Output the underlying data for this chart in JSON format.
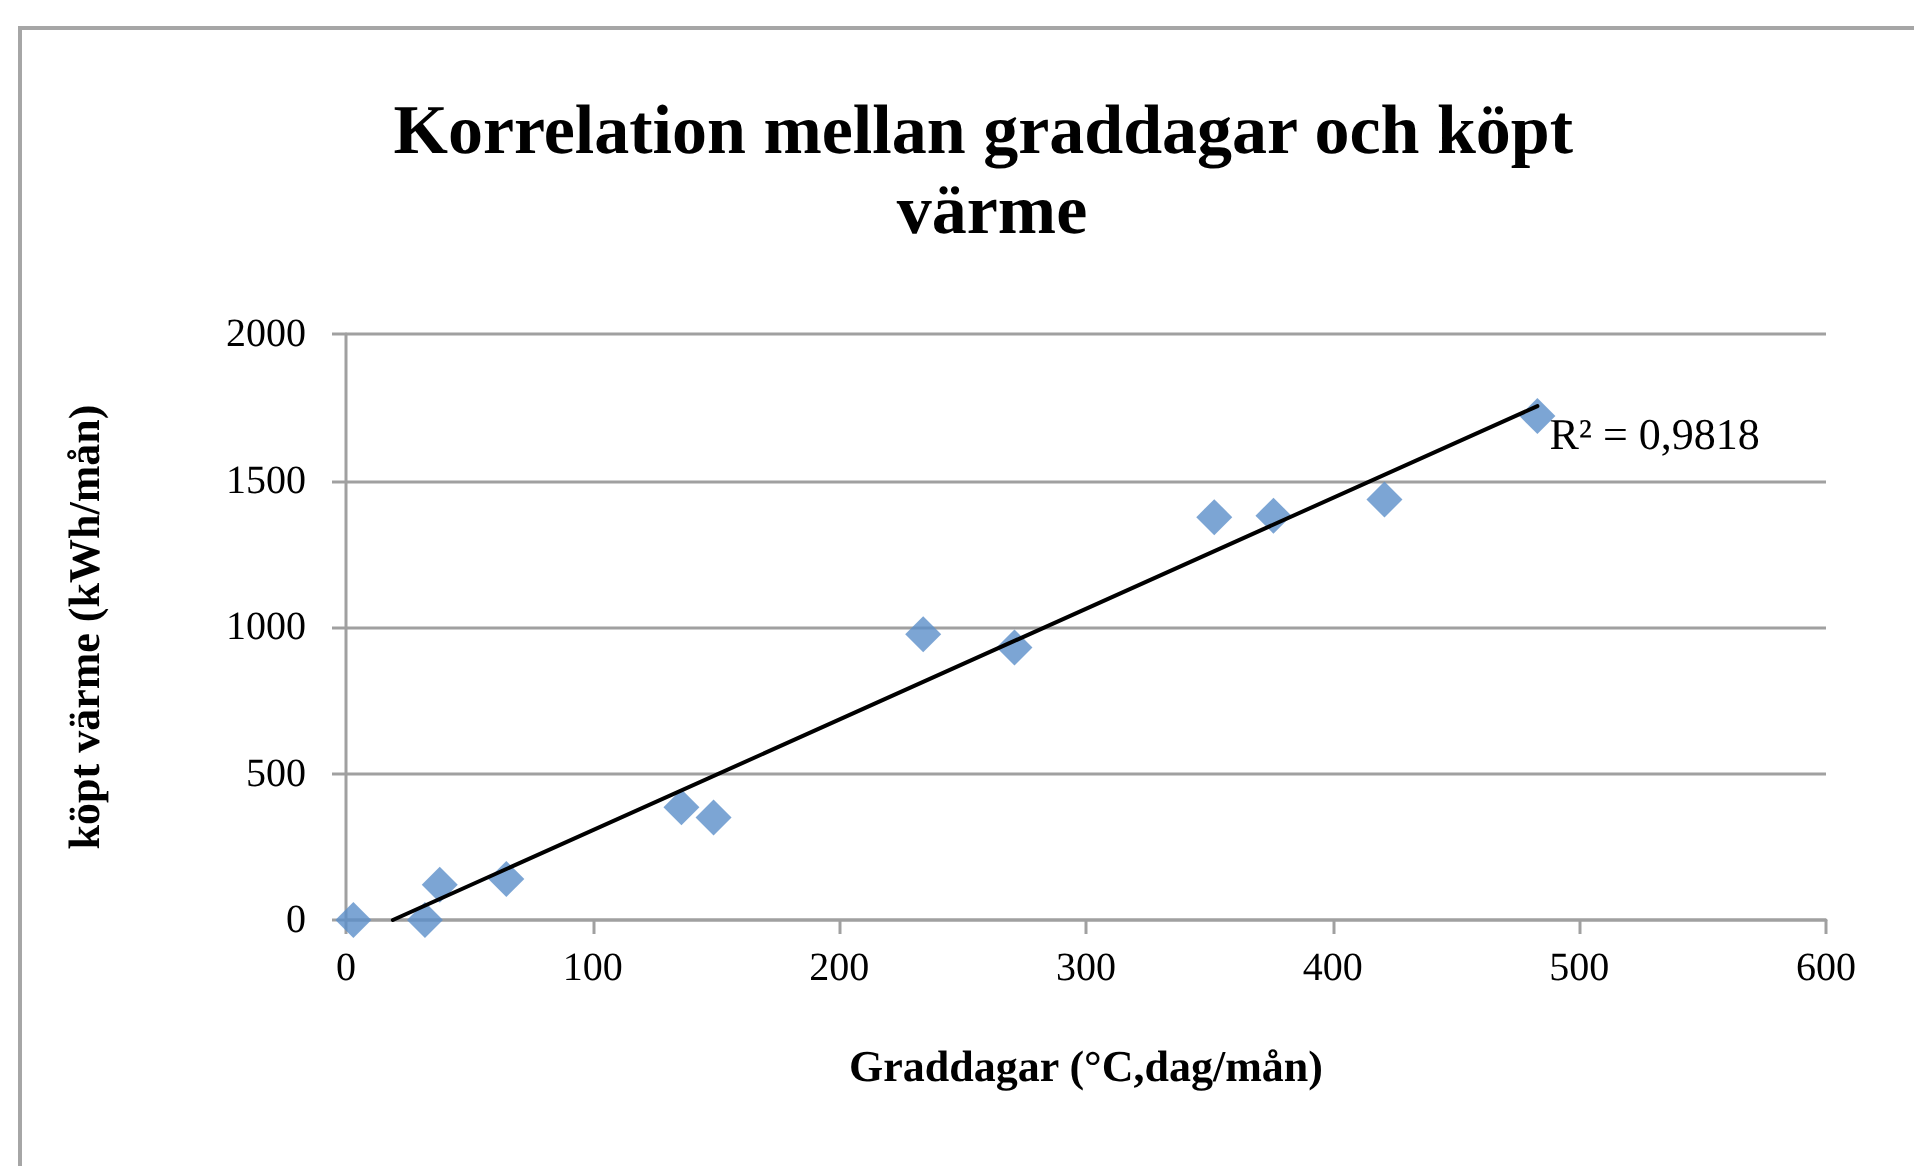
{
  "chart_data": {
    "type": "scatter",
    "title": "Korrelation mellan graddagar och köpt värme",
    "xlabel": "Graddagar (°C,dag/mån)",
    "ylabel": "köpt värme (kWh/mån)",
    "x": [
      3,
      32,
      38,
      65,
      136,
      149,
      234,
      271,
      352,
      376,
      421,
      483
    ],
    "series": [
      {
        "color": "#5b8ec9",
        "values": [
          0,
          0,
          120,
          140,
          385,
          350,
          975,
          930,
          1375,
          1380,
          1435,
          1720
        ]
      },
      {
        "type": "line",
        "x": [
          19,
          483
        ],
        "values": [
          0,
          1754
        ],
        "color": "#000000",
        "marker": "none",
        "line_style": "solid"
      }
    ],
    "xlim": [
      0,
      600
    ],
    "xticks": [
      0,
      100,
      200,
      300,
      400,
      500,
      600
    ],
    "ylim": [
      0,
      2000
    ],
    "yticks": [
      0,
      500,
      1000,
      1500,
      2000
    ],
    "grid": "y",
    "marker": "diamond",
    "annotations": [
      {
        "text": "R² = 0,9818",
        "x": 483,
        "y": 1754
      }
    ]
  }
}
